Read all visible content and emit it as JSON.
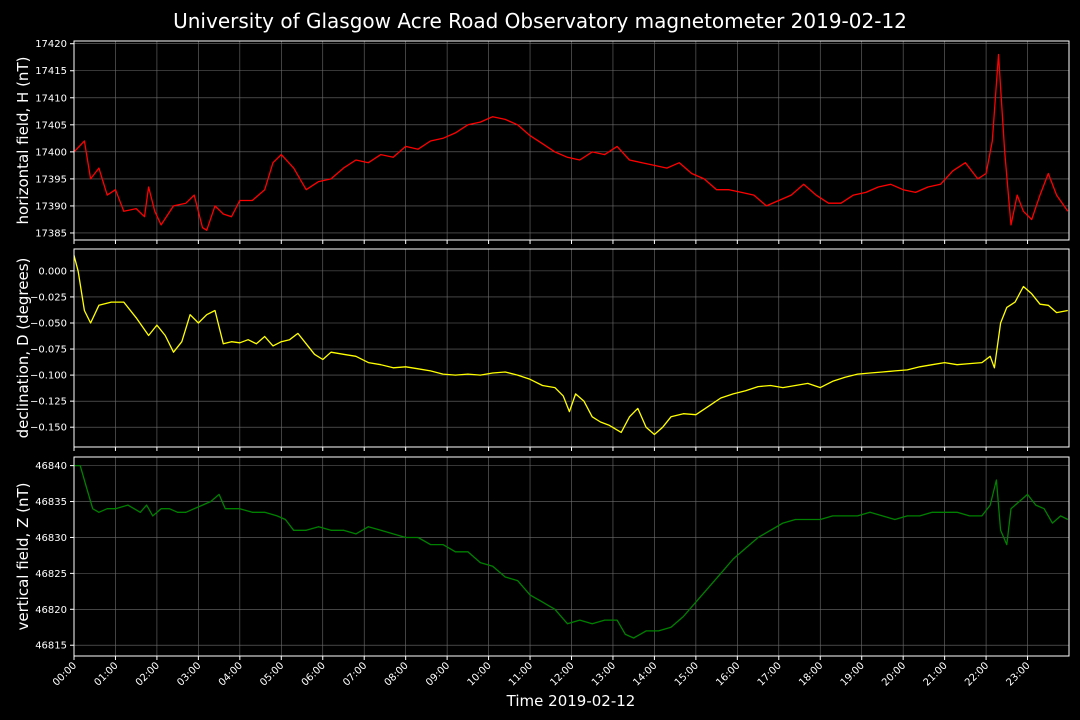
{
  "figure": {
    "title": "University of Glasgow Acre Road Observatory magnetometer 2019-02-12",
    "xlabel": "Time 2019-02-12",
    "background": "#000000",
    "text_color": "#ffffff",
    "grid_color": "#6e6e6e"
  },
  "chart_data": [
    {
      "type": "line",
      "ylabel": "horizontal field, H (nT)",
      "color": "#ff0000",
      "ylim": [
        17383.7,
        17420.5
      ],
      "yticks": [
        17385,
        17390,
        17395,
        17400,
        17405,
        17410,
        17415,
        17420
      ],
      "ytick_labels": [
        "17385",
        "17390",
        "17395",
        "17400",
        "17405",
        "17410",
        "17415",
        "17420"
      ],
      "grid": true,
      "x_hours": [
        0,
        0.25,
        0.4,
        0.6,
        0.8,
        1.0,
        1.2,
        1.5,
        1.7,
        1.8,
        1.95,
        2.1,
        2.4,
        2.7,
        2.9,
        3.1,
        3.2,
        3.4,
        3.6,
        3.8,
        4.0,
        4.3,
        4.6,
        4.8,
        5.0,
        5.3,
        5.6,
        5.9,
        6.2,
        6.5,
        6.8,
        7.1,
        7.4,
        7.7,
        8.0,
        8.3,
        8.6,
        8.9,
        9.2,
        9.5,
        9.8,
        10.1,
        10.4,
        10.7,
        11.0,
        11.3,
        11.6,
        11.9,
        12.2,
        12.5,
        12.8,
        13.1,
        13.4,
        13.7,
        14.0,
        14.3,
        14.6,
        14.9,
        15.2,
        15.5,
        15.8,
        16.1,
        16.4,
        16.7,
        17.0,
        17.3,
        17.6,
        17.9,
        18.2,
        18.5,
        18.8,
        19.1,
        19.4,
        19.7,
        20.0,
        20.3,
        20.6,
        20.9,
        21.2,
        21.5,
        21.8,
        22.0,
        22.15,
        22.3,
        22.45,
        22.6,
        22.75,
        22.9,
        23.1,
        23.3,
        23.5,
        23.7,
        23.97
      ],
      "values": [
        17400,
        17402,
        17395,
        17397,
        17392,
        17393,
        17389,
        17389.5,
        17388,
        17393.5,
        17389,
        17386.5,
        17390,
        17390.5,
        17392,
        17386,
        17385.5,
        17390,
        17388.5,
        17388,
        17391,
        17391,
        17393,
        17398,
        17399.5,
        17397,
        17393,
        17394.5,
        17395,
        17397,
        17398.5,
        17398,
        17399.5,
        17399,
        17401,
        17400.5,
        17402,
        17402.5,
        17403.5,
        17405,
        17405.5,
        17406.5,
        17406,
        17405,
        17403,
        17401.5,
        17400,
        17399,
        17398.5,
        17400,
        17399.5,
        17401,
        17398.5,
        17398,
        17397.5,
        17397,
        17398,
        17396,
        17395,
        17393,
        17393,
        17392.5,
        17392,
        17390,
        17391,
        17392,
        17394,
        17392,
        17390.5,
        17390.5,
        17392,
        17392.5,
        17393.5,
        17394,
        17393,
        17392.5,
        17393.5,
        17394,
        17396.5,
        17398,
        17395,
        17396,
        17402,
        17418,
        17400,
        17386.5,
        17392,
        17389,
        17387.5,
        17392,
        17396,
        17392,
        17389
      ]
    },
    {
      "type": "line",
      "ylabel": "declination, D (degrees)",
      "color": "#ffff00",
      "ylim": [
        -0.169,
        0.021
      ],
      "yticks": [
        -0.15,
        -0.125,
        -0.1,
        -0.075,
        -0.05,
        -0.025,
        0.0
      ],
      "ytick_labels": [
        "−0.150",
        "−0.125",
        "−0.100",
        "−0.075",
        "−0.050",
        "−0.025",
        "0.000"
      ],
      "grid": true,
      "x_hours": [
        0,
        0.1,
        0.25,
        0.4,
        0.6,
        0.9,
        1.2,
        1.5,
        1.8,
        2.0,
        2.2,
        2.4,
        2.6,
        2.8,
        3.0,
        3.2,
        3.4,
        3.6,
        3.8,
        4.0,
        4.2,
        4.4,
        4.6,
        4.8,
        5.0,
        5.2,
        5.4,
        5.6,
        5.8,
        6.0,
        6.2,
        6.5,
        6.8,
        7.1,
        7.4,
        7.7,
        8.0,
        8.3,
        8.6,
        8.9,
        9.2,
        9.5,
        9.8,
        10.1,
        10.4,
        10.7,
        11.0,
        11.3,
        11.6,
        11.8,
        11.95,
        12.1,
        12.3,
        12.5,
        12.7,
        12.9,
        13.2,
        13.4,
        13.6,
        13.8,
        14.0,
        14.2,
        14.4,
        14.7,
        15.0,
        15.3,
        15.6,
        15.9,
        16.2,
        16.5,
        16.8,
        17.1,
        17.4,
        17.7,
        18.0,
        18.3,
        18.6,
        18.9,
        19.2,
        19.5,
        19.8,
        20.1,
        20.4,
        20.7,
        21.0,
        21.3,
        21.6,
        21.9,
        22.1,
        22.2,
        22.35,
        22.5,
        22.7,
        22.9,
        23.1,
        23.3,
        23.5,
        23.7,
        23.97
      ],
      "values": [
        0.015,
        0.0,
        -0.038,
        -0.05,
        -0.033,
        -0.03,
        -0.03,
        -0.045,
        -0.062,
        -0.052,
        -0.062,
        -0.078,
        -0.068,
        -0.042,
        -0.05,
        -0.042,
        -0.038,
        -0.07,
        -0.068,
        -0.069,
        -0.066,
        -0.07,
        -0.063,
        -0.072,
        -0.068,
        -0.066,
        -0.06,
        -0.07,
        -0.08,
        -0.085,
        -0.078,
        -0.08,
        -0.082,
        -0.088,
        -0.09,
        -0.093,
        -0.092,
        -0.094,
        -0.096,
        -0.099,
        -0.1,
        -0.099,
        -0.1,
        -0.098,
        -0.097,
        -0.1,
        -0.104,
        -0.11,
        -0.112,
        -0.12,
        -0.135,
        -0.118,
        -0.125,
        -0.14,
        -0.145,
        -0.148,
        -0.155,
        -0.14,
        -0.132,
        -0.15,
        -0.157,
        -0.15,
        -0.14,
        -0.137,
        -0.138,
        -0.13,
        -0.122,
        -0.118,
        -0.115,
        -0.111,
        -0.11,
        -0.112,
        -0.11,
        -0.108,
        -0.112,
        -0.106,
        -0.102,
        -0.099,
        -0.098,
        -0.097,
        -0.096,
        -0.095,
        -0.092,
        -0.09,
        -0.088,
        -0.09,
        -0.089,
        -0.088,
        -0.082,
        -0.093,
        -0.05,
        -0.035,
        -0.03,
        -0.015,
        -0.022,
        -0.032,
        -0.033,
        -0.04,
        -0.038
      ]
    },
    {
      "type": "line",
      "ylabel": "vertical field, Z (nT)",
      "color": "#008000",
      "ylim": [
        46813.5,
        46841.2
      ],
      "yticks": [
        46815,
        46820,
        46825,
        46830,
        46835,
        46840
      ],
      "ytick_labels": [
        "46815",
        "46820",
        "46825",
        "46830",
        "46835",
        "46840"
      ],
      "grid": true,
      "x_hours": [
        0,
        0.15,
        0.3,
        0.45,
        0.6,
        0.8,
        1.0,
        1.3,
        1.6,
        1.75,
        1.9,
        2.1,
        2.3,
        2.5,
        2.7,
        2.9,
        3.1,
        3.3,
        3.5,
        3.65,
        3.8,
        4.0,
        4.3,
        4.6,
        4.9,
        5.1,
        5.3,
        5.6,
        5.9,
        6.2,
        6.5,
        6.8,
        7.1,
        7.4,
        7.7,
        8.0,
        8.3,
        8.6,
        8.9,
        9.2,
        9.5,
        9.8,
        10.1,
        10.4,
        10.7,
        11.0,
        11.3,
        11.6,
        11.9,
        12.2,
        12.5,
        12.8,
        13.1,
        13.3,
        13.5,
        13.8,
        14.1,
        14.4,
        14.7,
        15.0,
        15.3,
        15.6,
        15.9,
        16.2,
        16.5,
        16.8,
        17.1,
        17.4,
        17.7,
        18.0,
        18.3,
        18.6,
        18.9,
        19.2,
        19.5,
        19.8,
        20.1,
        20.4,
        20.7,
        21.0,
        21.3,
        21.6,
        21.9,
        22.1,
        22.25,
        22.35,
        22.5,
        22.6,
        22.8,
        23.0,
        23.2,
        23.4,
        23.6,
        23.8,
        23.97
      ],
      "values": [
        46840,
        46840,
        46837,
        46834,
        46833.5,
        46834,
        46834,
        46834.5,
        46833.5,
        46834.5,
        46833,
        46834,
        46834,
        46833.5,
        46833.5,
        46834,
        46834.5,
        46835,
        46836,
        46834,
        46834,
        46834,
        46833.5,
        46833.5,
        46833,
        46832.5,
        46831,
        46831,
        46831.5,
        46831,
        46831,
        46830.5,
        46831.5,
        46831,
        46830.5,
        46830,
        46830,
        46829,
        46829,
        46828,
        46828,
        46826.5,
        46826,
        46824.5,
        46824,
        46822,
        46821,
        46820,
        46818,
        46818.5,
        46818,
        46818.5,
        46818.5,
        46816.5,
        46816,
        46817,
        46817,
        46817.5,
        46819,
        46821,
        46823,
        46825,
        46827,
        46828.5,
        46830,
        46831,
        46832,
        46832.5,
        46832.5,
        46832.5,
        46833,
        46833,
        46833,
        46833.5,
        46833,
        46832.5,
        46833,
        46833,
        46833.5,
        46833.5,
        46833.5,
        46833,
        46833,
        46834.5,
        46838,
        46831,
        46829,
        46834,
        46835,
        46836,
        46834.5,
        46834,
        46832,
        46833,
        46832.5
      ]
    }
  ],
  "x_axis": {
    "xlim_hours": [
      0,
      24
    ],
    "tick_labels": [
      "00:00",
      "01:00",
      "02:00",
      "03:00",
      "04:00",
      "05:00",
      "06:00",
      "07:00",
      "08:00",
      "09:00",
      "10:00",
      "11:00",
      "12:00",
      "13:00",
      "14:00",
      "15:00",
      "16:00",
      "17:00",
      "18:00",
      "19:00",
      "20:00",
      "21:00",
      "22:00",
      "23:00"
    ]
  }
}
